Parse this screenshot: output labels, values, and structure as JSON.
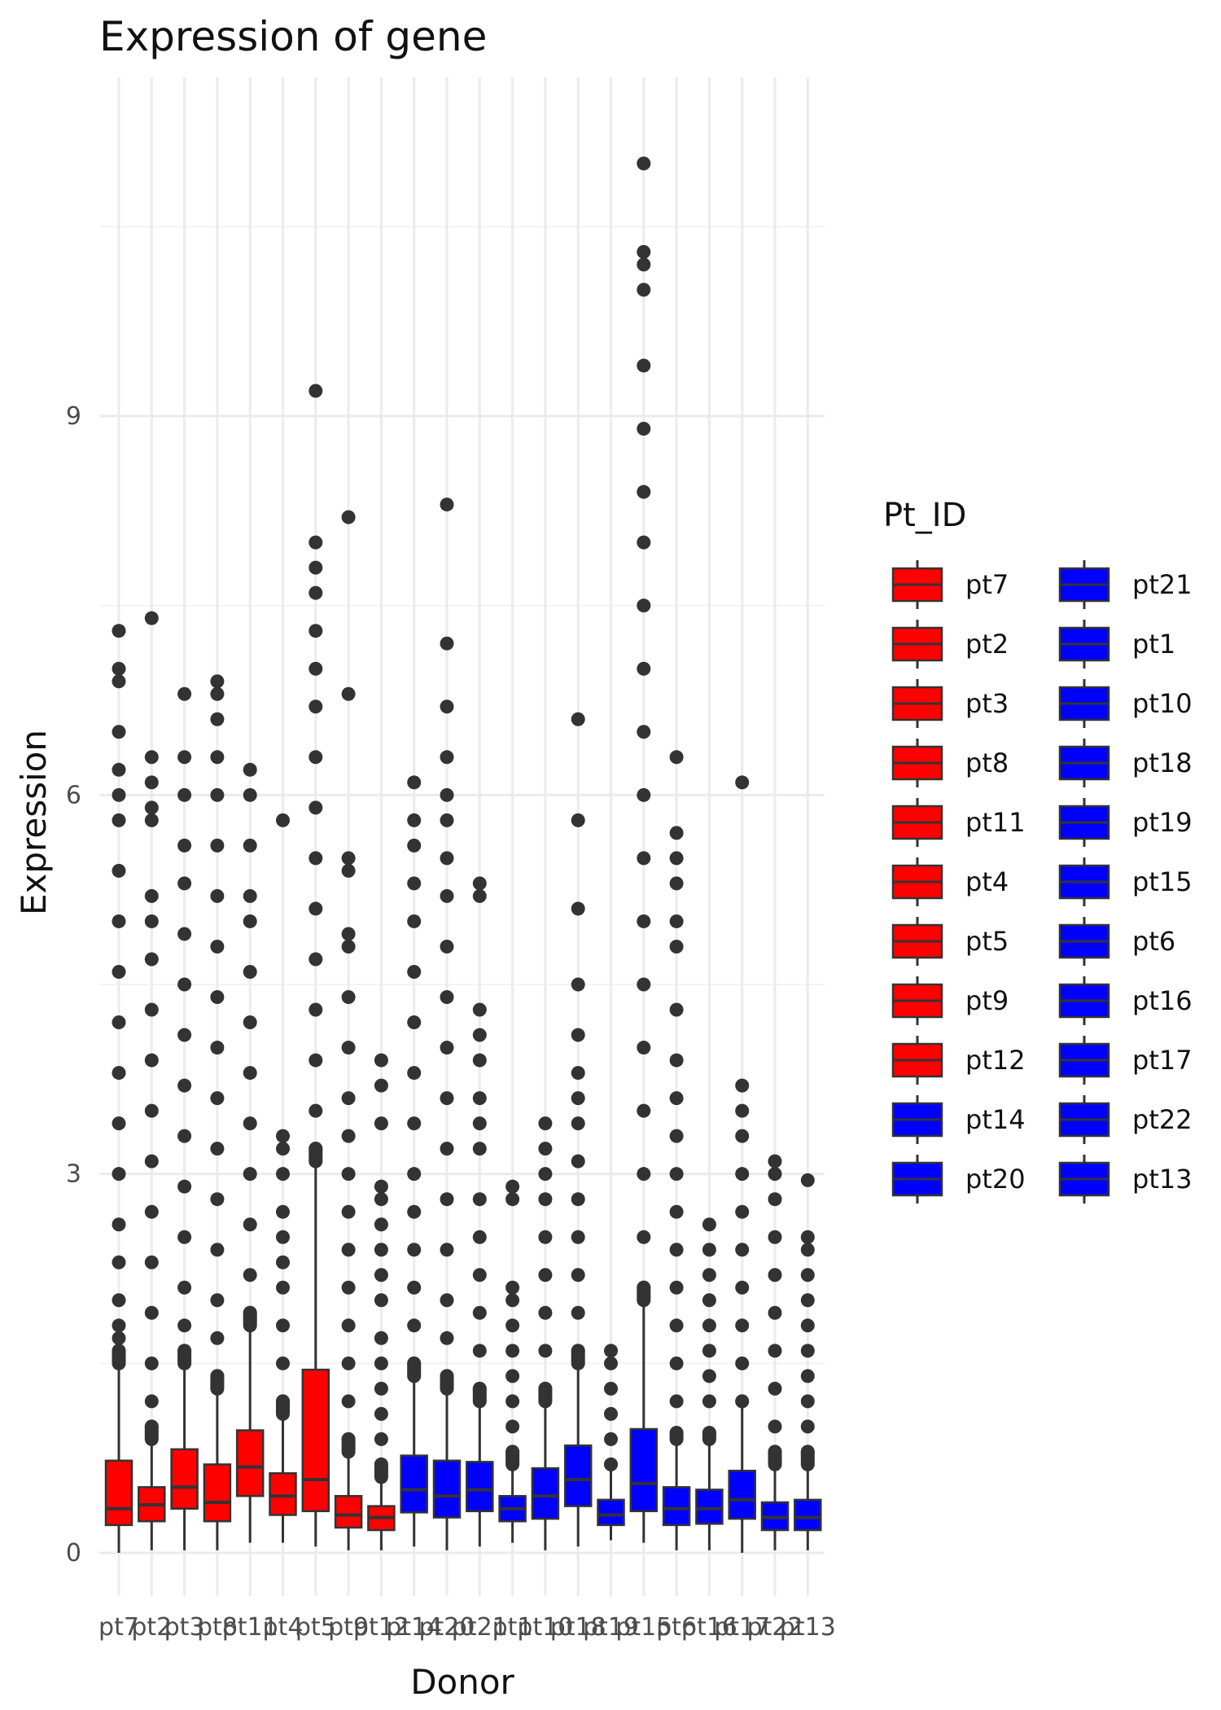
{
  "chart_data": {
    "type": "boxplot",
    "title": "Expression of gene",
    "xlabel": "Donor",
    "ylabel": "Expression",
    "ylim": [
      -0.2,
      11.3
    ],
    "yticks": [
      0,
      3,
      6,
      9
    ],
    "grid": "on",
    "legend": {
      "title": "Pt_ID",
      "placement": "right",
      "columns": 2
    },
    "colors": {
      "group1": "#ff0000",
      "group2": "#0000ff",
      "outline": "#333333",
      "grid": "#ebebeb"
    },
    "categories": [
      "pt7",
      "pt2",
      "pt3",
      "pt8",
      "pt11",
      "pt4",
      "pt5",
      "pt9",
      "pt12",
      "pt14",
      "pt20",
      "pt21",
      "pt1",
      "pt10",
      "pt18",
      "pt19",
      "pt15",
      "pt6",
      "pt16",
      "pt17",
      "pt22",
      "pt13"
    ],
    "fill": [
      "red",
      "red",
      "red",
      "red",
      "red",
      "red",
      "red",
      "red",
      "red",
      "blue",
      "blue",
      "blue",
      "blue",
      "blue",
      "blue",
      "blue",
      "blue",
      "blue",
      "blue",
      "blue",
      "blue",
      "blue"
    ],
    "boxes": [
      {
        "q1": 0.22,
        "median": 0.35,
        "q3": 0.73,
        "whisker_low": 0.0,
        "whisker_high": 1.5,
        "max_outlier": 7.3
      },
      {
        "q1": 0.25,
        "median": 0.38,
        "q3": 0.52,
        "whisker_low": 0.02,
        "whisker_high": 0.9,
        "max_outlier": 7.4
      },
      {
        "q1": 0.35,
        "median": 0.52,
        "q3": 0.82,
        "whisker_low": 0.02,
        "whisker_high": 1.5,
        "max_outlier": 6.8
      },
      {
        "q1": 0.25,
        "median": 0.4,
        "q3": 0.7,
        "whisker_low": 0.02,
        "whisker_high": 1.3,
        "max_outlier": 6.9
      },
      {
        "q1": 0.45,
        "median": 0.68,
        "q3": 0.97,
        "whisker_low": 0.08,
        "whisker_high": 1.8,
        "max_outlier": 6.2
      },
      {
        "q1": 0.3,
        "median": 0.45,
        "q3": 0.63,
        "whisker_low": 0.08,
        "whisker_high": 1.1,
        "max_outlier": 5.8
      },
      {
        "q1": 0.33,
        "median": 0.58,
        "q3": 1.45,
        "whisker_low": 0.05,
        "whisker_high": 3.1,
        "max_outlier": 9.2
      },
      {
        "q1": 0.2,
        "median": 0.3,
        "q3": 0.45,
        "whisker_low": 0.02,
        "whisker_high": 0.8,
        "max_outlier": 8.2
      },
      {
        "q1": 0.18,
        "median": 0.28,
        "q3": 0.37,
        "whisker_low": 0.02,
        "whisker_high": 0.6,
        "max_outlier": 3.9
      },
      {
        "q1": 0.32,
        "median": 0.5,
        "q3": 0.77,
        "whisker_low": 0.05,
        "whisker_high": 1.4,
        "max_outlier": 6.1
      },
      {
        "q1": 0.28,
        "median": 0.45,
        "q3": 0.73,
        "whisker_low": 0.02,
        "whisker_high": 1.3,
        "max_outlier": 8.3
      },
      {
        "q1": 0.33,
        "median": 0.5,
        "q3": 0.72,
        "whisker_low": 0.05,
        "whisker_high": 1.2,
        "max_outlier": 5.3
      },
      {
        "q1": 0.25,
        "median": 0.35,
        "q3": 0.45,
        "whisker_low": 0.08,
        "whisker_high": 0.7,
        "max_outlier": 2.9
      },
      {
        "q1": 0.27,
        "median": 0.45,
        "q3": 0.67,
        "whisker_low": 0.02,
        "whisker_high": 1.2,
        "max_outlier": 3.4
      },
      {
        "q1": 0.37,
        "median": 0.58,
        "q3": 0.85,
        "whisker_low": 0.05,
        "whisker_high": 1.5,
        "max_outlier": 6.6
      },
      {
        "q1": 0.22,
        "median": 0.3,
        "q3": 0.42,
        "whisker_low": 0.1,
        "whisker_high": 0.7,
        "max_outlier": 1.6
      },
      {
        "q1": 0.33,
        "median": 0.55,
        "q3": 0.98,
        "whisker_low": 0.08,
        "whisker_high": 2.0,
        "max_outlier": 11.0
      },
      {
        "q1": 0.22,
        "median": 0.35,
        "q3": 0.52,
        "whisker_low": 0.02,
        "whisker_high": 0.9,
        "max_outlier": 6.3
      },
      {
        "q1": 0.23,
        "median": 0.35,
        "q3": 0.5,
        "whisker_low": 0.02,
        "whisker_high": 0.9,
        "max_outlier": 2.6
      },
      {
        "q1": 0.27,
        "median": 0.42,
        "q3": 0.65,
        "whisker_low": 0.0,
        "whisker_high": 1.2,
        "max_outlier": 6.1
      },
      {
        "q1": 0.18,
        "median": 0.28,
        "q3": 0.4,
        "whisker_low": 0.02,
        "whisker_high": 0.7,
        "max_outlier": 3.1
      },
      {
        "q1": 0.18,
        "median": 0.28,
        "q3": 0.42,
        "whisker_low": 0.02,
        "whisker_high": 0.7,
        "max_outlier": 2.95
      }
    ],
    "outliers": [
      [
        1.6,
        1.7,
        1.8,
        2.0,
        2.3,
        2.6,
        3.0,
        3.4,
        3.8,
        4.2,
        4.6,
        5.0,
        5.4,
        5.8,
        6.0,
        6.2,
        6.5,
        6.9,
        7.0,
        7.3
      ],
      [
        1.0,
        1.2,
        1.5,
        1.9,
        2.3,
        2.7,
        3.1,
        3.5,
        3.9,
        4.3,
        4.7,
        5.0,
        5.2,
        5.8,
        5.9,
        6.1,
        6.3,
        7.4
      ],
      [
        1.6,
        1.8,
        2.1,
        2.5,
        2.9,
        3.3,
        3.7,
        4.1,
        4.5,
        4.9,
        5.3,
        5.6,
        6.0,
        6.3,
        6.8
      ],
      [
        1.4,
        1.7,
        2.0,
        2.4,
        2.8,
        3.2,
        3.6,
        4.0,
        4.4,
        4.8,
        5.2,
        5.6,
        6.0,
        6.3,
        6.6,
        6.8,
        6.9
      ],
      [
        1.9,
        2.2,
        2.6,
        3.0,
        3.4,
        3.8,
        4.2,
        4.6,
        5.0,
        5.2,
        5.6,
        6.0,
        6.2
      ],
      [
        1.2,
        1.5,
        1.8,
        2.1,
        2.3,
        2.5,
        2.7,
        3.0,
        3.2,
        3.3,
        5.8
      ],
      [
        3.2,
        3.5,
        3.9,
        4.3,
        4.7,
        5.1,
        5.5,
        5.9,
        6.3,
        6.7,
        7.0,
        7.3,
        7.6,
        7.8,
        8.0,
        9.2
      ],
      [
        0.9,
        1.2,
        1.5,
        1.8,
        2.1,
        2.4,
        2.7,
        3.0,
        3.3,
        3.6,
        4.0,
        4.4,
        4.8,
        4.9,
        5.4,
        5.5,
        6.8,
        8.2
      ],
      [
        0.7,
        0.9,
        1.1,
        1.3,
        1.5,
        1.7,
        2.0,
        2.2,
        2.4,
        2.6,
        2.8,
        2.9,
        3.4,
        3.7,
        3.9
      ],
      [
        1.5,
        1.8,
        2.1,
        2.4,
        2.7,
        3.0,
        3.4,
        3.8,
        4.2,
        4.6,
        5.0,
        5.3,
        5.6,
        5.8,
        6.1
      ],
      [
        1.4,
        1.7,
        2.0,
        2.4,
        2.8,
        3.2,
        3.6,
        4.0,
        4.4,
        4.8,
        5.2,
        5.5,
        5.8,
        6.0,
        6.3,
        6.7,
        7.2,
        8.3
      ],
      [
        1.3,
        1.6,
        1.9,
        2.2,
        2.5,
        2.8,
        3.2,
        3.4,
        3.6,
        3.9,
        4.1,
        4.3,
        5.2,
        5.3
      ],
      [
        0.8,
        1.0,
        1.2,
        1.4,
        1.6,
        1.8,
        2.0,
        2.1,
        2.8,
        2.9
      ],
      [
        1.3,
        1.6,
        1.9,
        2.2,
        2.5,
        2.8,
        3.0,
        3.2,
        3.4
      ],
      [
        1.6,
        1.9,
        2.2,
        2.5,
        2.8,
        3.1,
        3.4,
        3.6,
        3.8,
        4.1,
        4.5,
        5.1,
        5.8,
        6.6
      ],
      [
        0.7,
        0.9,
        1.1,
        1.3,
        1.5,
        1.6
      ],
      [
        2.1,
        2.5,
        3.0,
        3.5,
        4.0,
        4.5,
        5.0,
        5.5,
        6.0,
        6.5,
        7.0,
        7.5,
        8.0,
        8.4,
        8.9,
        9.4,
        10.0,
        10.2,
        10.3,
        11.0
      ],
      [
        0.95,
        1.2,
        1.5,
        1.8,
        2.1,
        2.4,
        2.7,
        3.0,
        3.3,
        3.6,
        3.9,
        4.3,
        4.8,
        5.0,
        5.3,
        5.5,
        5.7,
        6.3
      ],
      [
        0.95,
        1.2,
        1.4,
        1.6,
        1.8,
        2.0,
        2.2,
        2.4,
        2.6
      ],
      [
        1.2,
        1.5,
        1.8,
        2.1,
        2.4,
        2.7,
        3.0,
        3.3,
        3.5,
        3.7,
        6.1
      ],
      [
        0.8,
        1.0,
        1.3,
        1.6,
        1.9,
        2.2,
        2.5,
        2.8,
        3.0,
        3.1
      ],
      [
        0.8,
        1.0,
        1.2,
        1.4,
        1.6,
        1.8,
        2.0,
        2.2,
        2.4,
        2.5,
        2.95
      ]
    ],
    "legend_left": [
      "pt7",
      "pt2",
      "pt3",
      "pt8",
      "pt11",
      "pt4",
      "pt5",
      "pt9",
      "pt12",
      "pt14",
      "pt20"
    ],
    "legend_left_fill": [
      "red",
      "red",
      "red",
      "red",
      "red",
      "red",
      "red",
      "red",
      "red",
      "blue",
      "blue"
    ],
    "legend_right": [
      "pt21",
      "pt1",
      "pt10",
      "pt18",
      "pt19",
      "pt15",
      "pt6",
      "pt16",
      "pt17",
      "pt22",
      "pt13"
    ],
    "legend_right_fill": [
      "blue",
      "blue",
      "blue",
      "blue",
      "blue",
      "blue",
      "blue",
      "blue",
      "blue",
      "blue",
      "blue"
    ]
  }
}
